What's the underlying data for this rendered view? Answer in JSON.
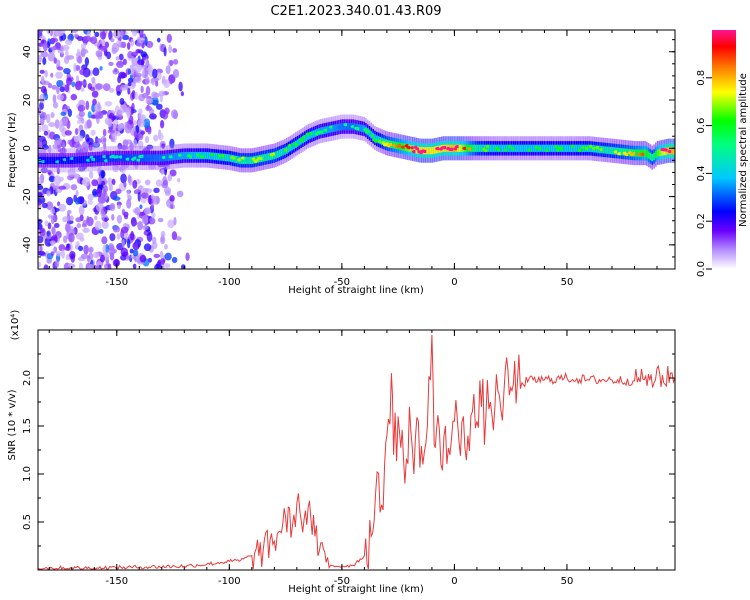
{
  "title": "C2E1.2023.340.01.43.R09",
  "chart_data": [
    {
      "type": "heatmap",
      "title": "C2E1.2023.340.01.43.R09",
      "xlabel": "Height of straight line (km)",
      "ylabel": "Frequency (Hz)",
      "xlim": [
        -185,
        98
      ],
      "ylim": [
        -50,
        49
      ],
      "x_ticks": [
        "-150",
        "-100",
        "-50",
        "0",
        "50"
      ],
      "y_ticks": [
        "-40",
        "-20",
        "0",
        "20",
        "40"
      ],
      "colorbar": {
        "label": "Normalized spectral amplitude",
        "range": [
          0,
          1
        ],
        "ticks": [
          "0.0",
          "0.2",
          "0.4",
          "0.6",
          "0.8"
        ],
        "colormap": [
          "#ffffff",
          "#8a2be2",
          "#0000ff",
          "#00ffff",
          "#00ff00",
          "#ffff00",
          "#ff0000",
          "#ff1493"
        ]
      },
      "ridge": {
        "x": [
          -185,
          -170,
          -150,
          -130,
          -120,
          -110,
          -100,
          -95,
          -90,
          -85,
          -80,
          -75,
          -70,
          -65,
          -60,
          -55,
          -50,
          -45,
          -40,
          -35,
          -30,
          -25,
          -20,
          -15,
          -10,
          -5,
          0,
          10,
          20,
          30,
          40,
          50,
          60,
          70,
          80,
          85,
          88,
          90,
          95,
          98
        ],
        "y": [
          -5,
          -5,
          -4,
          -4,
          -3,
          -3,
          -4,
          -5,
          -5,
          -4,
          -3,
          -1,
          2,
          5,
          7,
          8,
          9,
          9,
          8,
          4,
          2,
          1,
          0,
          -1,
          -1,
          0,
          0,
          0,
          0,
          0,
          0,
          0,
          0,
          -1,
          -2,
          -2,
          -4,
          -2,
          -1,
          -1
        ],
        "amplitude": [
          0.3,
          0.3,
          0.35,
          0.4,
          0.45,
          0.5,
          0.55,
          0.6,
          0.6,
          0.6,
          0.6,
          0.55,
          0.5,
          0.5,
          0.45,
          0.45,
          0.4,
          0.4,
          0.45,
          0.5,
          0.65,
          0.75,
          0.85,
          0.95,
          0.95,
          0.95,
          1.0,
          0.6,
          0.5,
          0.5,
          0.5,
          0.5,
          0.55,
          0.6,
          0.7,
          0.8,
          0.6,
          0.8,
          1.0,
          1.0
        ]
      },
      "noise_region_x": [
        -185,
        -118
      ]
    },
    {
      "type": "line",
      "xlabel": "Height of straight line (km)",
      "ylabel": "SNR (10 * v/v)",
      "y_multiplier": "(x10⁴)",
      "xlim": [
        -185,
        98
      ],
      "ylim": [
        0,
        2.5
      ],
      "x_ticks": [
        "-150",
        "-100",
        "-50",
        "0",
        "50"
      ],
      "y_ticks": [
        "0.5",
        "1.0",
        "1.5",
        "2.0"
      ],
      "color": "#e83a3a",
      "x": [
        -185,
        -160,
        -140,
        -120,
        -110,
        -100,
        -95,
        -90,
        -85,
        -80,
        -75,
        -72,
        -70,
        -68,
        -65,
        -62,
        -60,
        -57,
        -55,
        -52,
        -50,
        -45,
        -40,
        -37,
        -35,
        -33,
        -31,
        -30,
        -28,
        -27,
        -25,
        -22,
        -20,
        -18,
        -16,
        -14,
        -12,
        -10,
        -9,
        -8,
        -6,
        -4,
        -2,
        0,
        2,
        4,
        6,
        8,
        10,
        12,
        14,
        16,
        18,
        20,
        22,
        25,
        28,
        30,
        35,
        40,
        50,
        60,
        70,
        80,
        85,
        88,
        90,
        93,
        96,
        98
      ],
      "y": [
        0.02,
        0.02,
        0.03,
        0.04,
        0.06,
        0.09,
        0.1,
        0.15,
        0.2,
        0.3,
        0.55,
        0.45,
        0.7,
        0.5,
        0.65,
        0.35,
        0.2,
        0.08,
        0.05,
        0.04,
        0.04,
        0.05,
        0.15,
        0.35,
        0.8,
        0.6,
        1.1,
        1.4,
        2.05,
        1.2,
        1.6,
        0.9,
        1.7,
        1.0,
        1.55,
        1.1,
        1.5,
        2.45,
        1.3,
        1.45,
        1.1,
        1.5,
        1.2,
        1.55,
        1.35,
        1.6,
        1.4,
        1.65,
        1.55,
        1.7,
        1.6,
        1.75,
        1.7,
        1.82,
        1.85,
        1.9,
        1.95,
        1.95,
        1.98,
        1.98,
        2.0,
        1.98,
        1.98,
        1.97,
        2.02,
        1.9,
        2.1,
        1.95,
        2.05,
        2.0
      ]
    }
  ]
}
